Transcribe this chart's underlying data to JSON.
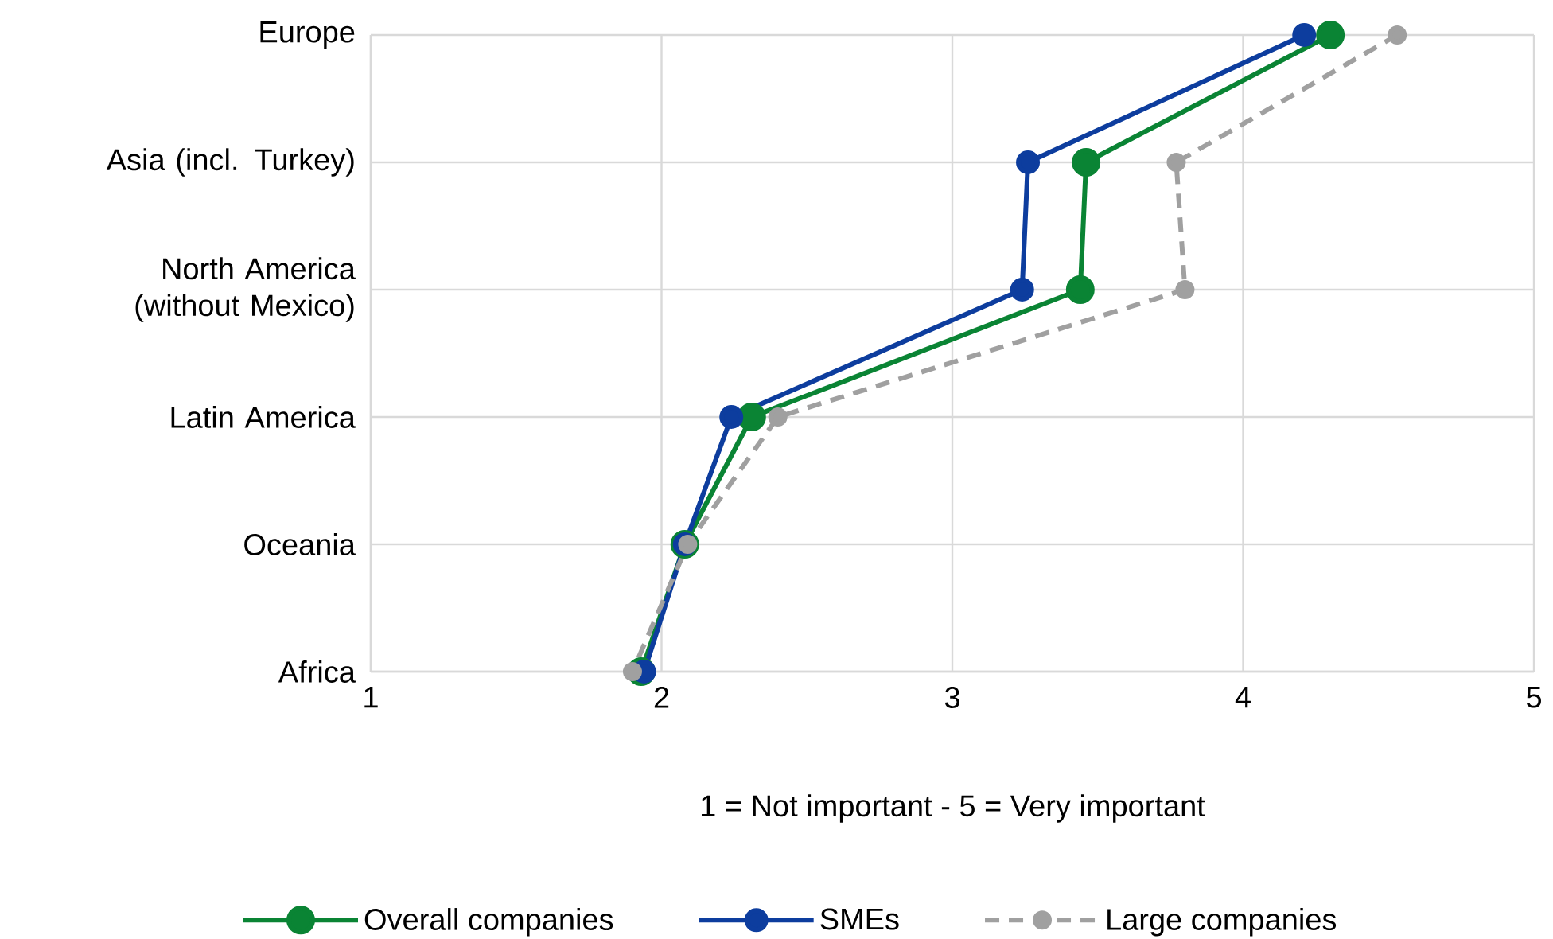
{
  "chart_data": {
    "type": "line",
    "orientation": "horizontal",
    "categories": [
      "Europe",
      "Asia (incl. Turkey)",
      "North America (without Mexico)",
      "Latin America",
      "Oceania",
      "Africa"
    ],
    "series": [
      {
        "name": "Overall companies",
        "color": "#0a8434",
        "values": [
          4.3,
          3.46,
          3.44,
          2.31,
          2.08,
          1.93
        ]
      },
      {
        "name": "SMEs",
        "color": "#0d3d9e",
        "values": [
          4.21,
          3.26,
          3.24,
          2.24,
          2.08,
          1.94
        ]
      },
      {
        "name": "Large companies",
        "color": "#a0a0a0",
        "line_style": "dashed",
        "values": [
          4.53,
          3.77,
          3.8,
          2.4,
          2.09,
          1.9
        ]
      }
    ],
    "xlabel": "1 = Not important - 5 = Very important",
    "xlim": [
      1,
      5
    ],
    "xticks": [
      1,
      2,
      3,
      4,
      5
    ],
    "grid": true,
    "legend": "bottom",
    "marker": "circle",
    "line_style": "solid"
  }
}
